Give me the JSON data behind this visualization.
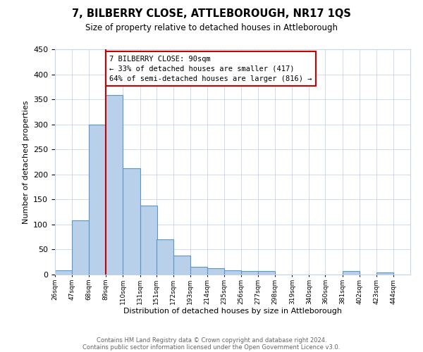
{
  "title": "7, BILBERRY CLOSE, ATTLEBOROUGH, NR17 1QS",
  "subtitle": "Size of property relative to detached houses in Attleborough",
  "xlabel": "Distribution of detached houses by size in Attleborough",
  "ylabel": "Number of detached properties",
  "footnote1": "Contains HM Land Registry data © Crown copyright and database right 2024.",
  "footnote2": "Contains public sector information licensed under the Open Government Licence v3.0.",
  "bar_edges": [
    26,
    47,
    68,
    89,
    110,
    131,
    151,
    172,
    193,
    214,
    235,
    256,
    277,
    298,
    319,
    340,
    360,
    381,
    402,
    423,
    444
  ],
  "bar_heights": [
    8,
    108,
    300,
    358,
    213,
    138,
    70,
    38,
    15,
    12,
    8,
    7,
    7,
    0,
    0,
    0,
    0,
    7,
    0,
    4,
    0
  ],
  "bar_color": "#b8d0ea",
  "bar_edge_color": "#5a96c8",
  "property_line_x": 89,
  "property_line_color": "#cc0000",
  "annotation_line1": "7 BILBERRY CLOSE: 90sqm",
  "annotation_line2": "← 33% of detached houses are smaller (417)",
  "annotation_line3": "64% of semi-detached houses are larger (816) →",
  "annotation_box_color": "#cc0000",
  "ylim": [
    0,
    450
  ],
  "yticks": [
    0,
    50,
    100,
    150,
    200,
    250,
    300,
    350,
    400,
    450
  ],
  "grid_color": "#c8d4e8",
  "background_color": "#ffffff"
}
